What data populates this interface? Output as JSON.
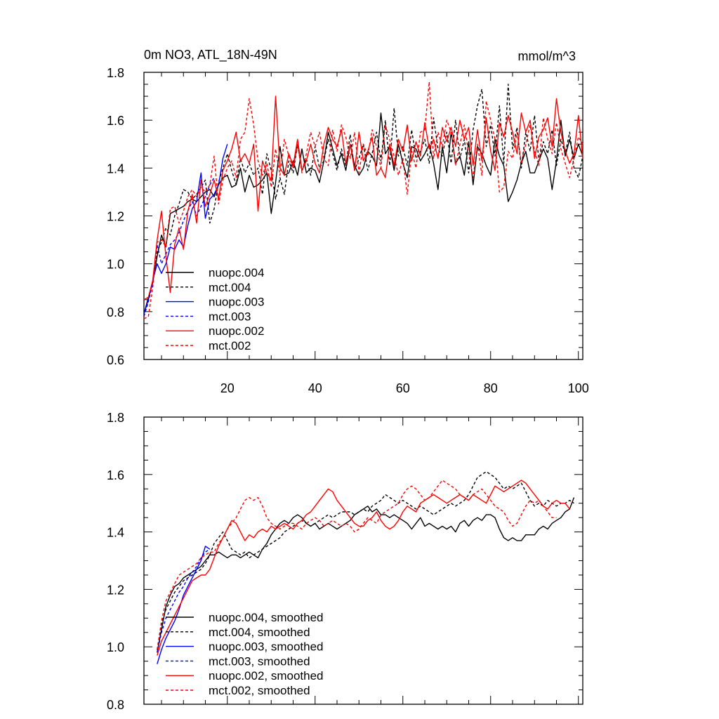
{
  "chart_data": [
    {
      "type": "line",
      "title": "0m NO3, ATL_18N-49N",
      "units": "mmol/m^3",
      "xlim": [
        1,
        101
      ],
      "ylim": [
        0.6,
        1.8
      ],
      "xticks": [
        20,
        40,
        60,
        80,
        100
      ],
      "xtick_labels": [
        "20",
        "40",
        "60",
        "80",
        "100"
      ],
      "yticks": [
        0.6,
        0.8,
        1.0,
        1.2,
        1.4,
        1.6,
        1.8
      ],
      "ytick_labels": [
        "0.6",
        "0.8",
        "1.0",
        "1.2",
        "1.4",
        "1.6",
        "1.8"
      ],
      "legend_position": "bottom-left",
      "series": [
        {
          "name": "nuopc.004",
          "color": "#000000",
          "dash": "solid",
          "x_start": 1,
          "values": [
            0.79,
            0.86,
            0.92,
            1.03,
            1.12,
            1.07,
            1.21,
            1.22,
            1.23,
            1.24,
            1.26,
            1.27,
            1.26,
            1.28,
            1.3,
            1.31,
            1.28,
            1.33,
            1.36,
            1.37,
            1.32,
            1.33,
            1.4,
            1.3,
            1.37,
            1.32,
            1.33,
            1.35,
            1.38,
            1.21,
            1.34,
            1.49,
            1.37,
            1.38,
            1.43,
            1.37,
            1.48,
            1.38,
            1.4,
            1.39,
            1.34,
            1.43,
            1.55,
            1.48,
            1.41,
            1.46,
            1.39,
            1.5,
            1.41,
            1.37,
            1.4,
            1.47,
            1.45,
            1.41,
            1.63,
            1.46,
            1.49,
            1.39,
            1.5,
            1.42,
            1.36,
            1.49,
            1.48,
            1.43,
            1.46,
            1.5,
            1.42,
            1.31,
            1.49,
            1.38,
            1.55,
            1.42,
            1.45,
            1.37,
            1.51,
            1.33,
            1.49,
            1.46,
            1.41,
            1.37,
            1.52,
            1.45,
            1.41,
            1.26,
            1.3,
            1.35,
            1.42,
            1.47,
            1.38,
            1.38,
            1.43,
            1.48,
            1.44,
            1.31,
            1.43,
            1.6,
            1.45,
            1.52,
            1.44,
            1.5,
            1.45
          ]
        },
        {
          "name": "mct.004",
          "color": "#000000",
          "dash": "dashed",
          "x_start": 1,
          "values": [
            0.78,
            0.85,
            0.92,
            1.05,
            1.09,
            1.15,
            1.12,
            1.2,
            1.25,
            1.31,
            1.3,
            1.27,
            1.29,
            1.32,
            1.35,
            1.17,
            1.23,
            1.34,
            1.4,
            1.46,
            1.39,
            1.33,
            1.44,
            1.38,
            1.42,
            1.37,
            1.4,
            1.29,
            1.46,
            1.39,
            1.27,
            1.36,
            1.29,
            1.43,
            1.38,
            1.5,
            1.39,
            1.44,
            1.37,
            1.49,
            1.4,
            1.43,
            1.52,
            1.46,
            1.39,
            1.48,
            1.41,
            1.54,
            1.39,
            1.44,
            1.5,
            1.39,
            1.46,
            1.55,
            1.43,
            1.6,
            1.41,
            1.65,
            1.45,
            1.49,
            1.41,
            1.56,
            1.44,
            1.47,
            1.52,
            1.42,
            1.61,
            1.48,
            1.45,
            1.55,
            1.42,
            1.6,
            1.44,
            1.52,
            1.38,
            1.56,
            1.66,
            1.73,
            1.49,
            1.58,
            1.45,
            1.66,
            1.42,
            1.75,
            1.48,
            1.57,
            1.4,
            1.55,
            1.47,
            1.62,
            1.43,
            1.51,
            1.46,
            1.56,
            1.41,
            1.52,
            1.46,
            1.55,
            1.4,
            1.36,
            1.45
          ]
        },
        {
          "name": "nuopc.003",
          "color": "#0000ff",
          "dash": "solid",
          "x_start": 1,
          "values": [
            0.79,
            0.85,
            0.93,
            1.0,
            0.96,
            1.0,
            1.07,
            1.06,
            1.1,
            1.07,
            1.16,
            1.23,
            1.26,
            1.38,
            1.19,
            1.27,
            1.29,
            1.33,
            1.44,
            1.5
          ]
        },
        {
          "name": "mct.003",
          "color": "#0000ff",
          "dash": "dashed",
          "x_start": 1,
          "values": [
            0.78,
            0.84,
            0.92,
            1.08,
            1.0,
            1.04,
            1.08,
            1.1,
            1.13,
            1.18,
            1.22,
            1.26,
            1.2,
            1.24,
            1.28,
            1.33,
            1.36
          ]
        },
        {
          "name": "nuopc.002",
          "color": "#ff0000",
          "dash": "solid",
          "x_start": 1,
          "values": [
            0.85,
            0.86,
            0.93,
            1.1,
            1.22,
            1.03,
            0.88,
            1.08,
            1.15,
            1.06,
            1.22,
            1.29,
            1.17,
            1.35,
            1.24,
            1.29,
            1.35,
            1.27,
            1.39,
            1.43,
            1.48,
            1.55,
            1.43,
            1.46,
            1.42,
            1.5,
            1.22,
            1.43,
            1.38,
            1.35,
            1.7,
            1.4,
            1.37,
            1.46,
            1.41,
            1.52,
            1.39,
            1.43,
            1.5,
            1.42,
            1.38,
            1.5,
            1.57,
            1.52,
            1.49,
            1.56,
            1.42,
            1.5,
            1.39,
            1.55,
            1.43,
            1.47,
            1.53,
            1.37,
            1.4,
            1.36,
            1.5,
            1.41,
            1.52,
            1.47,
            1.58,
            1.43,
            1.51,
            1.45,
            1.59,
            1.48,
            1.52,
            1.44,
            1.57,
            1.51,
            1.57,
            1.49,
            1.6,
            1.52,
            1.57,
            1.41,
            1.56,
            1.43,
            1.61,
            1.47,
            1.39,
            1.59,
            1.53,
            1.62,
            1.55,
            1.46,
            1.63,
            1.55,
            1.6,
            1.44,
            1.53,
            1.56,
            1.61,
            1.49,
            1.69,
            1.55,
            1.47,
            1.42,
            1.46,
            1.62,
            1.44
          ]
        },
        {
          "name": "mct.002",
          "color": "#ff0000",
          "dash": "dashed",
          "x_start": 1,
          "values": [
            0.77,
            0.78,
            0.9,
            1.09,
            1.1,
            1.07,
            1.23,
            1.24,
            1.17,
            1.22,
            1.28,
            1.31,
            1.28,
            1.32,
            1.3,
            1.33,
            1.45,
            1.25,
            1.35,
            1.4,
            1.43,
            1.36,
            1.52,
            1.55,
            1.69,
            1.58,
            1.43,
            1.37,
            1.42,
            1.32,
            1.48,
            1.37,
            1.52,
            1.45,
            1.4,
            1.5,
            1.38,
            1.46,
            1.55,
            1.49,
            1.55,
            1.44,
            1.41,
            1.56,
            1.47,
            1.58,
            1.53,
            1.44,
            1.55,
            1.38,
            1.5,
            1.45,
            1.56,
            1.49,
            1.4,
            1.58,
            1.52,
            1.45,
            1.37,
            1.44,
            1.29,
            1.47,
            1.4,
            1.55,
            1.56,
            1.76,
            1.44,
            1.55,
            1.49,
            1.6,
            1.55,
            1.41,
            1.5,
            1.58,
            1.46,
            1.36,
            1.5,
            1.37,
            1.68,
            1.6,
            1.52,
            1.3,
            1.32,
            1.47,
            1.44,
            1.55,
            1.42,
            1.5,
            1.58,
            1.47,
            1.41,
            1.61,
            1.52,
            1.46,
            1.59,
            1.48,
            1.42,
            1.36,
            1.44,
            1.53,
            1.5
          ]
        }
      ]
    },
    {
      "type": "line",
      "xlim": [
        1,
        101
      ],
      "ylim": [
        0.8,
        1.8
      ],
      "xticks": [
        20,
        40,
        60,
        80,
        100
      ],
      "yticks": [
        0.8,
        1.0,
        1.2,
        1.4,
        1.6,
        1.8
      ],
      "ytick_labels": [
        "0.8",
        "1.0",
        "1.2",
        "1.4",
        "1.6",
        "1.8"
      ],
      "legend_position": "bottom-left",
      "series": [
        {
          "name": "nuopc.004, smoothed",
          "color": "#000000",
          "dash": "solid",
          "x_start": 4,
          "values": [
            0.98,
            1.06,
            1.14,
            1.18,
            1.21,
            1.22,
            1.24,
            1.25,
            1.26,
            1.27,
            1.28,
            1.3,
            1.32,
            1.32,
            1.33,
            1.32,
            1.31,
            1.32,
            1.32,
            1.31,
            1.32,
            1.33,
            1.32,
            1.31,
            1.34,
            1.36,
            1.39,
            1.41,
            1.43,
            1.44,
            1.43,
            1.45,
            1.46,
            1.45,
            1.43,
            1.42,
            1.43,
            1.41,
            1.42,
            1.43,
            1.42,
            1.41,
            1.42,
            1.43,
            1.44,
            1.46,
            1.47,
            1.48,
            1.49,
            1.47,
            1.48,
            1.46,
            1.46,
            1.45,
            1.46,
            1.45,
            1.44,
            1.43,
            1.41,
            1.43,
            1.45,
            1.42,
            1.43,
            1.42,
            1.41,
            1.42,
            1.41,
            1.42,
            1.4,
            1.43,
            1.44,
            1.42,
            1.44,
            1.45,
            1.44,
            1.46,
            1.46,
            1.45,
            1.41,
            1.38,
            1.37,
            1.38,
            1.37,
            1.37,
            1.39,
            1.39,
            1.39,
            1.41,
            1.42,
            1.41,
            1.43,
            1.44,
            1.45,
            1.47,
            1.48,
            1.52
          ]
        },
        {
          "name": "mct.004, smoothed",
          "color": "#000000",
          "dash": "dashed",
          "x_start": 4,
          "values": [
            0.99,
            1.08,
            1.13,
            1.16,
            1.19,
            1.21,
            1.23,
            1.24,
            1.25,
            1.26,
            1.27,
            1.29,
            1.32,
            1.36,
            1.38,
            1.4,
            1.37,
            1.34,
            1.33,
            1.32,
            1.33,
            1.31,
            1.32,
            1.33,
            1.34,
            1.35,
            1.36,
            1.37,
            1.38,
            1.4,
            1.41,
            1.42,
            1.43,
            1.44,
            1.43,
            1.42,
            1.43,
            1.44,
            1.45,
            1.46,
            1.45,
            1.46,
            1.47,
            1.47,
            1.47,
            1.46,
            1.47,
            1.48,
            1.47,
            1.49,
            1.5,
            1.51,
            1.53,
            1.52,
            1.51,
            1.5,
            1.51,
            1.5,
            1.49,
            1.48,
            1.49,
            1.48,
            1.47,
            1.46,
            1.47,
            1.48,
            1.49,
            1.5,
            1.49,
            1.5,
            1.51,
            1.53,
            1.56,
            1.59,
            1.6,
            1.61,
            1.6,
            1.59,
            1.57,
            1.55,
            1.56,
            1.55,
            1.56,
            1.57,
            1.54,
            1.51,
            1.49,
            1.5,
            1.49,
            1.51,
            1.5,
            1.49,
            1.5,
            1.5,
            1.51,
            1.5
          ]
        },
        {
          "name": "nuopc.003, smoothed",
          "color": "#0000ff",
          "dash": "solid",
          "x_start": 4,
          "values": [
            0.94,
            0.99,
            1.03,
            1.06,
            1.09,
            1.13,
            1.18,
            1.21,
            1.24,
            1.27,
            1.3,
            1.35,
            1.34
          ]
        },
        {
          "name": "mct.003, smoothed",
          "color": "#0000ff",
          "dash": "dashed",
          "x_start": 4,
          "values": [
            0.98,
            1.05,
            1.1,
            1.13,
            1.16,
            1.19,
            1.21,
            1.24,
            1.26,
            1.28,
            1.31,
            1.33,
            1.34
          ]
        },
        {
          "name": "nuopc.002, smoothed",
          "color": "#ff0000",
          "dash": "solid",
          "x_start": 4,
          "values": [
            0.97,
            1.02,
            1.05,
            1.08,
            1.11,
            1.14,
            1.17,
            1.2,
            1.23,
            1.24,
            1.25,
            1.25,
            1.27,
            1.31,
            1.35,
            1.38,
            1.41,
            1.44,
            1.43,
            1.4,
            1.37,
            1.39,
            1.38,
            1.4,
            1.41,
            1.4,
            1.42,
            1.41,
            1.42,
            1.43,
            1.42,
            1.41,
            1.43,
            1.44,
            1.46,
            1.47,
            1.49,
            1.51,
            1.53,
            1.55,
            1.54,
            1.51,
            1.49,
            1.47,
            1.45,
            1.43,
            1.42,
            1.42,
            1.44,
            1.45,
            1.47,
            1.44,
            1.42,
            1.41,
            1.42,
            1.44,
            1.47,
            1.49,
            1.48,
            1.47,
            1.5,
            1.51,
            1.52,
            1.53,
            1.52,
            1.51,
            1.5,
            1.51,
            1.52,
            1.53,
            1.52,
            1.51,
            1.53,
            1.52,
            1.51,
            1.5,
            1.53,
            1.56,
            1.55,
            1.54,
            1.55,
            1.56,
            1.57,
            1.58,
            1.57,
            1.55,
            1.53,
            1.51,
            1.49,
            1.48,
            1.5,
            1.51,
            1.5,
            1.5,
            1.48
          ]
        },
        {
          "name": "mct.002, smoothed",
          "color": "#ff0000",
          "dash": "dashed",
          "x_start": 4,
          "values": [
            0.99,
            1.09,
            1.16,
            1.19,
            1.22,
            1.25,
            1.26,
            1.27,
            1.28,
            1.29,
            1.31,
            1.32,
            1.33,
            1.33,
            1.36,
            1.38,
            1.41,
            1.43,
            1.45,
            1.48,
            1.51,
            1.52,
            1.51,
            1.52,
            1.49,
            1.45,
            1.43,
            1.42,
            1.41,
            1.42,
            1.43,
            1.43,
            1.42,
            1.41,
            1.43,
            1.44,
            1.45,
            1.44,
            1.42,
            1.43,
            1.44,
            1.43,
            1.42,
            1.43,
            1.42,
            1.4,
            1.41,
            1.43,
            1.45,
            1.44,
            1.43,
            1.46,
            1.47,
            1.48,
            1.49,
            1.5,
            1.53,
            1.55,
            1.56,
            1.55,
            1.53,
            1.51,
            1.52,
            1.54,
            1.56,
            1.58,
            1.57,
            1.56,
            1.55,
            1.53,
            1.52,
            1.51,
            1.53,
            1.54,
            1.55,
            1.53,
            1.51,
            1.49,
            1.48,
            1.47,
            1.44,
            1.42,
            1.43,
            1.46,
            1.49,
            1.51,
            1.5,
            1.51,
            1.49,
            1.47,
            1.45,
            1.45
          ]
        }
      ]
    }
  ]
}
